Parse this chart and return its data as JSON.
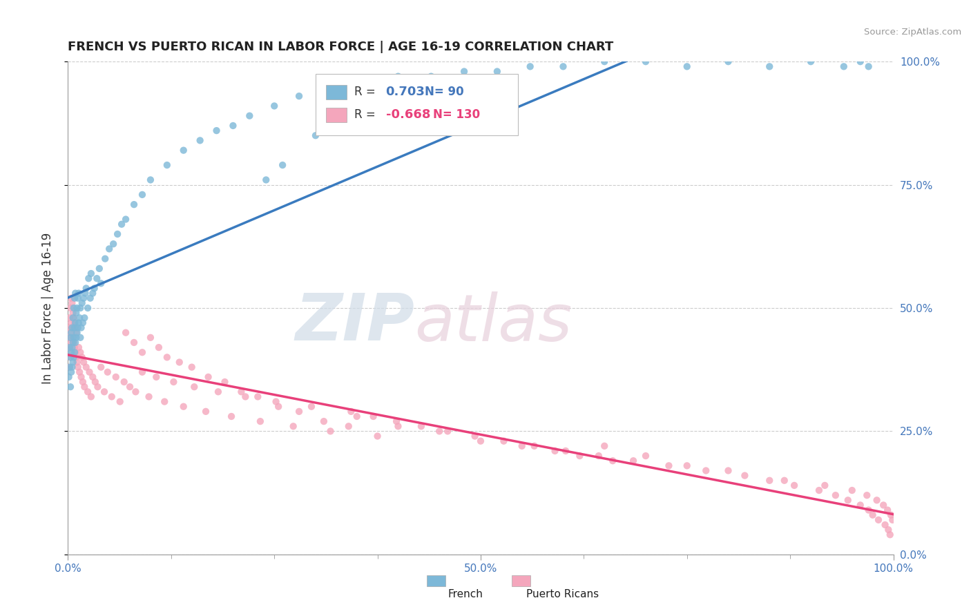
{
  "title": "FRENCH VS PUERTO RICAN IN LABOR FORCE | AGE 16-19 CORRELATION CHART",
  "source": "Source: ZipAtlas.com",
  "ylabel": "In Labor Force | Age 16-19",
  "xlim": [
    0.0,
    1.0
  ],
  "ylim": [
    0.0,
    1.0
  ],
  "french_R": 0.703,
  "french_N": 90,
  "puerto_rican_R": -0.668,
  "puerto_rican_N": 130,
  "french_color": "#7db8d8",
  "puerto_rican_color": "#f4a6bc",
  "french_line_color": "#3a7bbf",
  "puerto_rican_line_color": "#e8407a",
  "watermark_color": "#d0dce8",
  "watermark_color2": "#e8d0dc",
  "background_color": "#ffffff",
  "grid_color": "#cccccc",
  "axis_color": "#999999",
  "label_color": "#4477bb",
  "title_color": "#222222",
  "source_color": "#999999",
  "legend_bg": "#eaf5fb",
  "legend_border": "#cce0ee",
  "french_scatter_x": [
    0.001,
    0.002,
    0.002,
    0.003,
    0.003,
    0.003,
    0.004,
    0.004,
    0.004,
    0.005,
    0.005,
    0.005,
    0.006,
    0.006,
    0.006,
    0.007,
    0.007,
    0.007,
    0.008,
    0.008,
    0.008,
    0.009,
    0.009,
    0.009,
    0.01,
    0.01,
    0.011,
    0.011,
    0.012,
    0.012,
    0.013,
    0.013,
    0.014,
    0.015,
    0.015,
    0.016,
    0.017,
    0.018,
    0.019,
    0.02,
    0.021,
    0.022,
    0.024,
    0.025,
    0.027,
    0.028,
    0.03,
    0.032,
    0.035,
    0.038,
    0.04,
    0.045,
    0.05,
    0.055,
    0.06,
    0.065,
    0.07,
    0.08,
    0.09,
    0.1,
    0.12,
    0.14,
    0.16,
    0.18,
    0.2,
    0.22,
    0.25,
    0.28,
    0.32,
    0.36,
    0.4,
    0.44,
    0.48,
    0.52,
    0.56,
    0.6,
    0.65,
    0.7,
    0.75,
    0.8,
    0.85,
    0.9,
    0.94,
    0.96,
    0.97,
    0.34,
    0.26,
    0.3,
    0.24,
    0.38
  ],
  "french_scatter_y": [
    0.36,
    0.38,
    0.42,
    0.34,
    0.4,
    0.44,
    0.37,
    0.41,
    0.45,
    0.38,
    0.42,
    0.46,
    0.39,
    0.43,
    0.48,
    0.4,
    0.44,
    0.5,
    0.41,
    0.46,
    0.52,
    0.43,
    0.47,
    0.53,
    0.44,
    0.49,
    0.45,
    0.5,
    0.46,
    0.52,
    0.47,
    0.53,
    0.48,
    0.44,
    0.5,
    0.46,
    0.51,
    0.47,
    0.52,
    0.48,
    0.53,
    0.54,
    0.5,
    0.56,
    0.52,
    0.57,
    0.53,
    0.54,
    0.56,
    0.58,
    0.55,
    0.6,
    0.62,
    0.63,
    0.65,
    0.67,
    0.68,
    0.71,
    0.73,
    0.76,
    0.79,
    0.82,
    0.84,
    0.86,
    0.87,
    0.89,
    0.91,
    0.93,
    0.94,
    0.96,
    0.97,
    0.97,
    0.98,
    0.98,
    0.99,
    0.99,
    1.0,
    1.0,
    0.99,
    1.0,
    0.99,
    1.0,
    0.99,
    1.0,
    0.99,
    0.9,
    0.79,
    0.85,
    0.76,
    0.94
  ],
  "puerto_rican_scatter_x": [
    0.001,
    0.001,
    0.002,
    0.002,
    0.002,
    0.003,
    0.003,
    0.003,
    0.004,
    0.004,
    0.004,
    0.005,
    0.005,
    0.005,
    0.006,
    0.006,
    0.007,
    0.007,
    0.008,
    0.008,
    0.009,
    0.009,
    0.01,
    0.01,
    0.011,
    0.012,
    0.013,
    0.014,
    0.015,
    0.016,
    0.017,
    0.018,
    0.019,
    0.02,
    0.022,
    0.024,
    0.026,
    0.028,
    0.03,
    0.033,
    0.036,
    0.04,
    0.044,
    0.048,
    0.053,
    0.058,
    0.063,
    0.068,
    0.075,
    0.082,
    0.09,
    0.098,
    0.107,
    0.117,
    0.128,
    0.14,
    0.153,
    0.167,
    0.182,
    0.198,
    0.215,
    0.233,
    0.252,
    0.273,
    0.295,
    0.318,
    0.343,
    0.37,
    0.398,
    0.428,
    0.46,
    0.493,
    0.528,
    0.565,
    0.603,
    0.643,
    0.685,
    0.728,
    0.773,
    0.82,
    0.868,
    0.917,
    0.95,
    0.968,
    0.98,
    0.988,
    0.993,
    0.997,
    0.999,
    0.65,
    0.7,
    0.75,
    0.8,
    0.85,
    0.88,
    0.91,
    0.93,
    0.945,
    0.96,
    0.97,
    0.975,
    0.982,
    0.99,
    0.994,
    0.996,
    0.35,
    0.4,
    0.45,
    0.5,
    0.55,
    0.59,
    0.62,
    0.66,
    0.07,
    0.08,
    0.09,
    0.1,
    0.11,
    0.12,
    0.135,
    0.15,
    0.17,
    0.19,
    0.21,
    0.23,
    0.255,
    0.28,
    0.31,
    0.34,
    0.375
  ],
  "puerto_rican_scatter_y": [
    0.42,
    0.46,
    0.38,
    0.44,
    0.48,
    0.4,
    0.45,
    0.5,
    0.43,
    0.47,
    0.52,
    0.41,
    0.46,
    0.51,
    0.44,
    0.49,
    0.43,
    0.48,
    0.42,
    0.47,
    0.41,
    0.46,
    0.4,
    0.45,
    0.39,
    0.38,
    0.42,
    0.37,
    0.41,
    0.36,
    0.4,
    0.35,
    0.39,
    0.34,
    0.38,
    0.33,
    0.37,
    0.32,
    0.36,
    0.35,
    0.34,
    0.38,
    0.33,
    0.37,
    0.32,
    0.36,
    0.31,
    0.35,
    0.34,
    0.33,
    0.37,
    0.32,
    0.36,
    0.31,
    0.35,
    0.3,
    0.34,
    0.29,
    0.33,
    0.28,
    0.32,
    0.27,
    0.31,
    0.26,
    0.3,
    0.25,
    0.29,
    0.28,
    0.27,
    0.26,
    0.25,
    0.24,
    0.23,
    0.22,
    0.21,
    0.2,
    0.19,
    0.18,
    0.17,
    0.16,
    0.15,
    0.14,
    0.13,
    0.12,
    0.11,
    0.1,
    0.09,
    0.08,
    0.07,
    0.22,
    0.2,
    0.18,
    0.17,
    0.15,
    0.14,
    0.13,
    0.12,
    0.11,
    0.1,
    0.09,
    0.08,
    0.07,
    0.06,
    0.05,
    0.04,
    0.28,
    0.26,
    0.25,
    0.23,
    0.22,
    0.21,
    0.2,
    0.19,
    0.45,
    0.43,
    0.41,
    0.44,
    0.42,
    0.4,
    0.39,
    0.38,
    0.36,
    0.35,
    0.33,
    0.32,
    0.3,
    0.29,
    0.27,
    0.26,
    0.24
  ]
}
